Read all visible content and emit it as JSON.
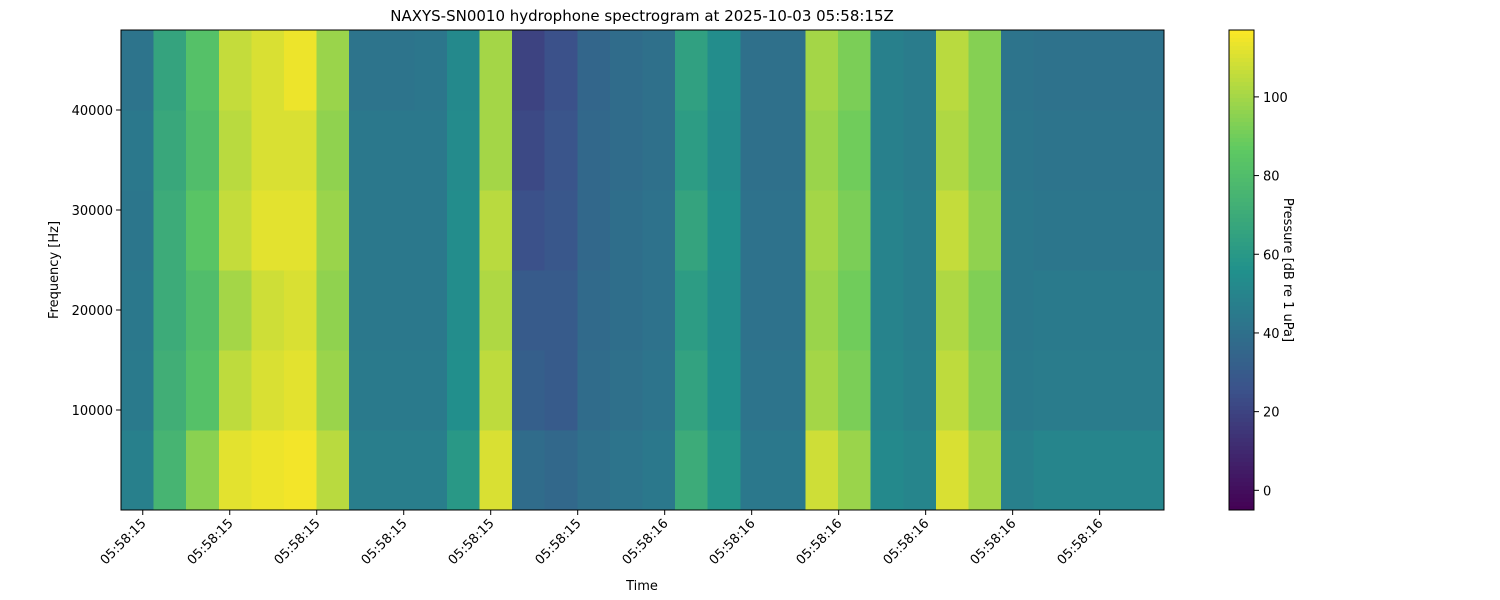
{
  "chart_data": {
    "type": "heatmap",
    "title": "NAXYS-SN0010 hydrophone spectrogram at 2025-10-03 05:58:15Z",
    "x_label": "Time",
    "y_label": "Frequency [Hz]",
    "colorbar_label": "Pressure [dB re 1 uPa]",
    "colormap": "viridis",
    "xlim": [
      15.375,
      16.574
    ],
    "ylim": [
      0,
      48000
    ],
    "clim": [
      -5,
      117
    ],
    "xticks": [
      {
        "value": 15.4,
        "label": "05:58:15"
      },
      {
        "value": 15.5,
        "label": "05:58:15"
      },
      {
        "value": 15.6,
        "label": "05:58:15"
      },
      {
        "value": 15.7,
        "label": "05:58:15"
      },
      {
        "value": 15.8,
        "label": "05:58:15"
      },
      {
        "value": 15.9,
        "label": "05:58:15"
      },
      {
        "value": 16.0,
        "label": "05:58:16"
      },
      {
        "value": 16.1,
        "label": "05:58:16"
      },
      {
        "value": 16.2,
        "label": "05:58:16"
      },
      {
        "value": 16.3,
        "label": "05:58:16"
      },
      {
        "value": 16.4,
        "label": "05:58:16"
      },
      {
        "value": 16.5,
        "label": "05:58:16"
      }
    ],
    "yticks": [
      10000,
      20000,
      30000,
      40000
    ],
    "cticks": [
      0,
      20,
      40,
      60,
      80,
      100
    ],
    "values": [
      [
        48,
        75,
        95,
        112,
        114,
        115,
        104,
        47,
        47,
        47,
        60,
        110,
        38,
        36,
        40,
        42,
        44,
        70,
        58,
        44,
        44,
        108,
        98,
        52,
        50,
        110,
        100,
        48,
        50,
        50,
        50,
        50
      ],
      [
        45,
        72,
        82,
        105,
        110,
        112,
        98,
        45,
        45,
        45,
        55,
        105,
        32,
        30,
        38,
        40,
        42,
        65,
        55,
        42,
        42,
        100,
        92,
        50,
        48,
        105,
        95,
        45,
        46,
        46,
        46,
        46
      ],
      [
        44,
        70,
        80,
        100,
        108,
        110,
        96,
        44,
        44,
        44,
        54,
        102,
        30,
        30,
        37,
        39,
        41,
        62,
        54,
        41,
        41,
        98,
        90,
        49,
        47,
        102,
        93,
        44,
        45,
        45,
        45,
        45
      ],
      [
        43,
        70,
        84,
        106,
        112,
        112,
        98,
        44,
        44,
        44,
        54,
        104,
        25,
        28,
        36,
        39,
        41,
        66,
        55,
        41,
        41,
        100,
        92,
        49,
        47,
        106,
        96,
        44,
        43,
        43,
        43,
        43
      ],
      [
        44,
        68,
        80,
        104,
        110,
        110,
        96,
        44,
        44,
        44,
        53,
        100,
        22,
        27,
        36,
        38,
        40,
        62,
        53,
        40,
        40,
        98,
        90,
        48,
        46,
        102,
        94,
        43,
        42,
        42,
        42,
        42
      ],
      [
        42,
        66,
        82,
        106,
        110,
        114,
        98,
        42,
        42,
        43,
        52,
        100,
        20,
        25,
        35,
        38,
        40,
        64,
        54,
        40,
        40,
        100,
        92,
        48,
        46,
        104,
        94,
        42,
        41,
        41,
        41,
        41
      ]
    ]
  }
}
